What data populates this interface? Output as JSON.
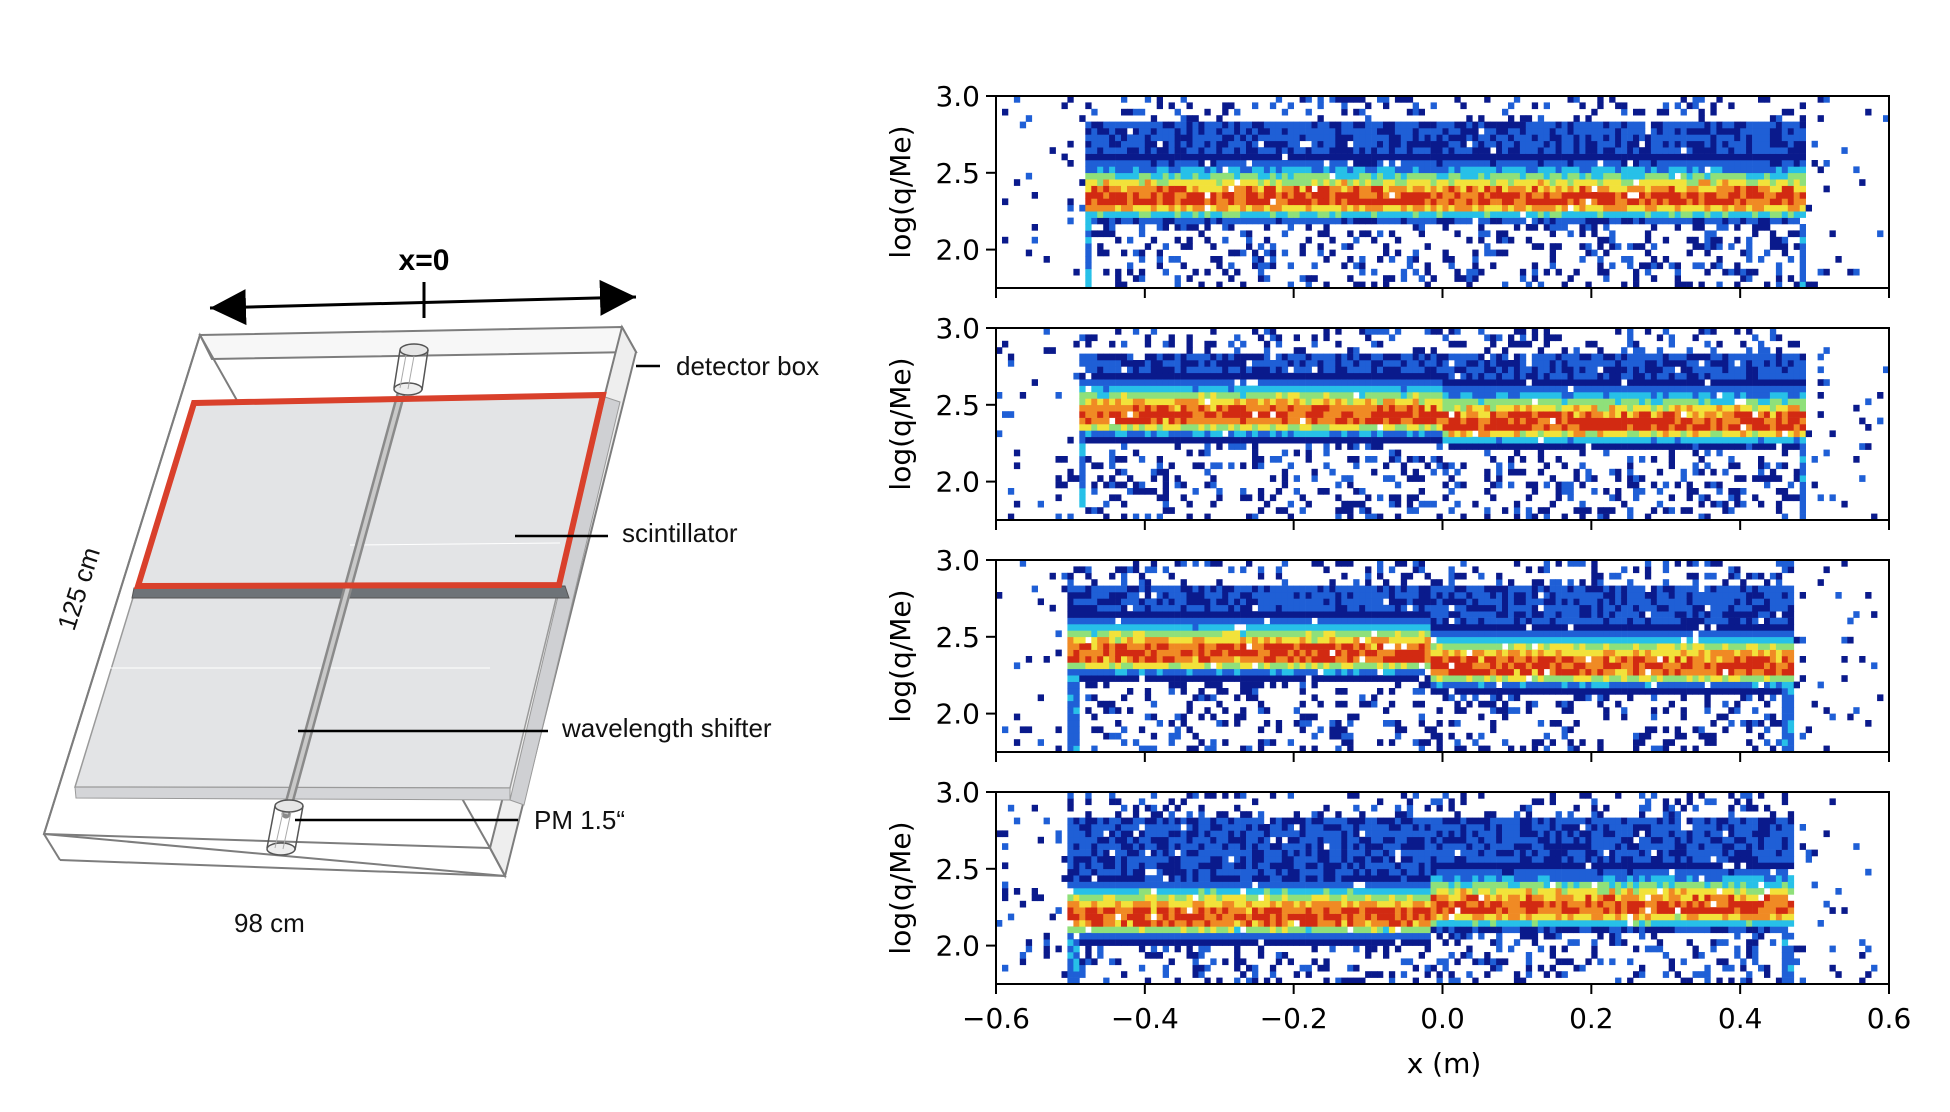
{
  "diagram": {
    "x_zero_label": "x=0",
    "labels": {
      "detector_box": "detector box",
      "scintillator": "scintillator",
      "wavelength_shifter": "wavelength shifter",
      "pm": "PM  1.5“",
      "height": "125 cm",
      "width": "98 cm"
    },
    "colors": {
      "highlight": "#d9402b",
      "scintillator": "#e3e4e6",
      "outline": "#808080"
    }
  },
  "chart_data": {
    "type": "heatmap",
    "xlabel": "x (m)",
    "ylabel": "log(q/Me)",
    "xlim": [
      -0.6,
      0.6
    ],
    "ylim": [
      1.75,
      3.0
    ],
    "x_ticks": [
      -0.6,
      -0.4,
      -0.2,
      0.0,
      0.2,
      0.4,
      0.6
    ],
    "x_tick_labels": [
      "−0.6",
      "−0.4",
      "−0.2",
      "0.0",
      "0.2",
      "0.4",
      "0.6"
    ],
    "y_ticks": [
      2.0,
      2.5,
      3.0
    ],
    "y_tick_labels": [
      "2.0",
      "2.5",
      "3.0"
    ],
    "colormap": [
      "#0a1a8c",
      "#1f5fd6",
      "#27c0e8",
      "#8fe07a",
      "#f2e23a",
      "#f08a24",
      "#d22a12"
    ],
    "panels": [
      {
        "x_min": -0.48,
        "x_max": 0.49,
        "peak_left": 2.32,
        "peak_right": 2.32,
        "step_at": 0.0
      },
      {
        "x_min": -0.49,
        "x_max": 0.49,
        "peak_left": 2.42,
        "peak_right": 2.37,
        "step_at": 0.0
      },
      {
        "x_min": -0.5,
        "x_max": 0.47,
        "peak_left": 2.38,
        "peak_right": 2.3,
        "step_at": -0.02
      },
      {
        "x_min": -0.5,
        "x_max": 0.47,
        "peak_left": 2.18,
        "peak_right": 2.24,
        "step_at": -0.02
      }
    ]
  }
}
